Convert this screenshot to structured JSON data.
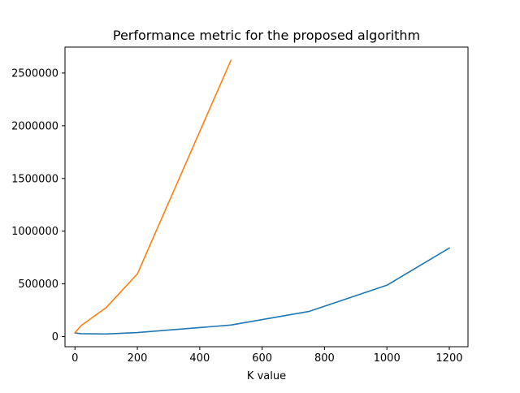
{
  "chart_data": {
    "type": "line",
    "title": "Performance metric for the proposed algorithm",
    "xlabel": "K value",
    "ylabel": "",
    "xlim": [
      -32,
      1260
    ],
    "ylim": [
      -96000,
      2746000
    ],
    "xticks": [
      0,
      200,
      400,
      600,
      800,
      1000,
      1200
    ],
    "xtick_labels": [
      "0",
      "200",
      "400",
      "600",
      "800",
      "1000",
      "1200"
    ],
    "yticks": [
      0,
      500000,
      1000000,
      1500000,
      2000000,
      2500000
    ],
    "ytick_labels": [
      "0",
      "500000",
      "1000000",
      "1500000",
      "2000000",
      "2500000"
    ],
    "grid": false,
    "legend": "none",
    "series": [
      {
        "color": "#1f77b4",
        "x": [
          0,
          20,
          100,
          200,
          500,
          750,
          1000,
          1200
        ],
        "y": [
          35000,
          28000,
          25000,
          38000,
          110000,
          238000,
          487000,
          840000
        ]
      },
      {
        "color": "#ff7f0e",
        "x": [
          0,
          20,
          100,
          200,
          500
        ],
        "y": [
          38000,
          105000,
          275000,
          595000,
          2620000
        ]
      }
    ]
  }
}
